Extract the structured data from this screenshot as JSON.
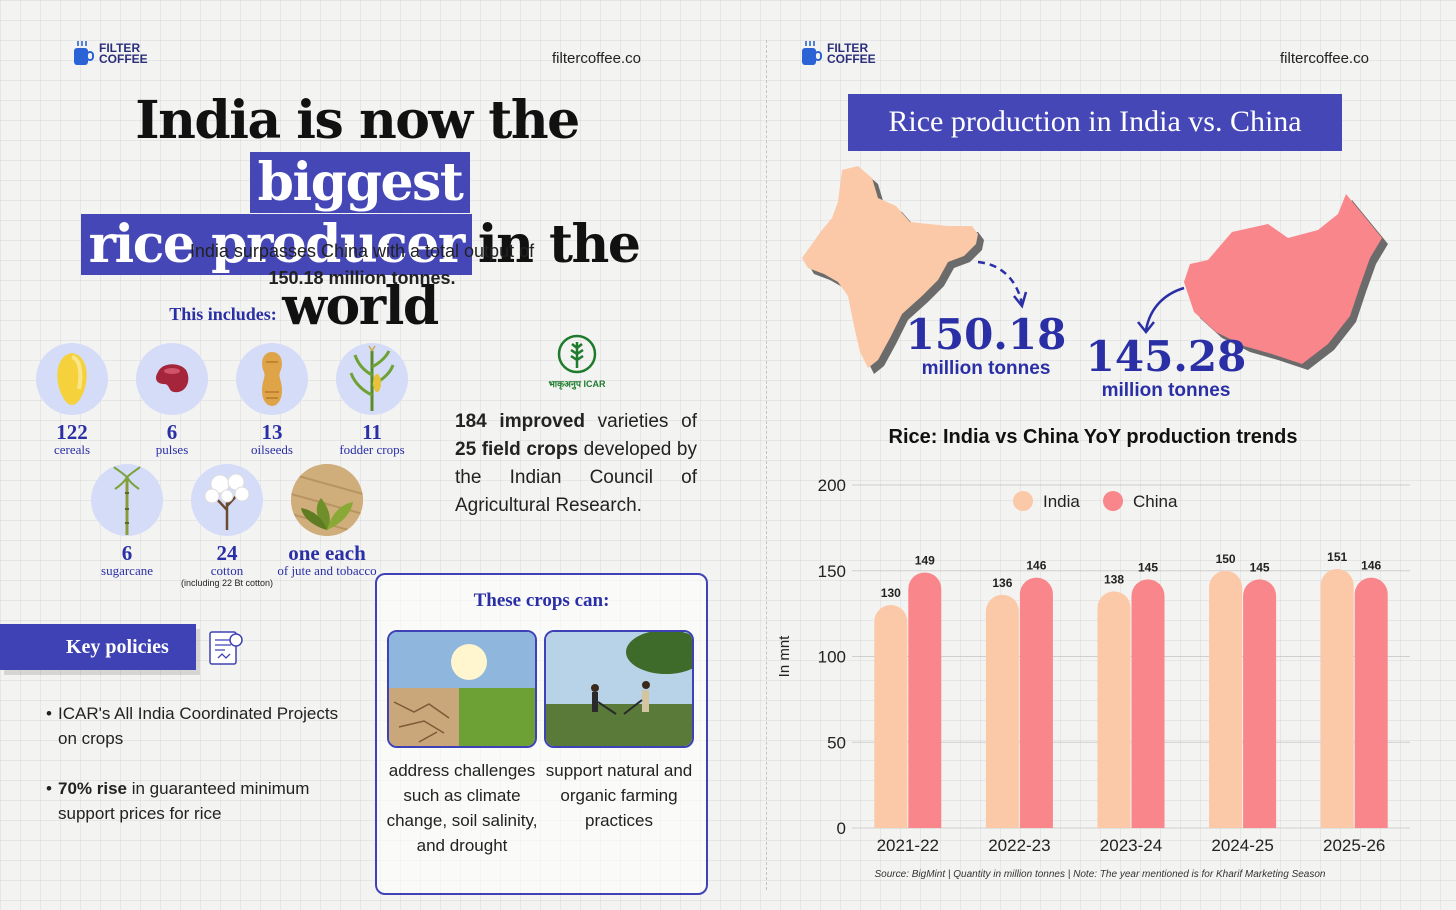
{
  "brand": {
    "line1": "FILTER",
    "line2": "COFFEE",
    "site": "filtercoffee.co"
  },
  "left": {
    "headline": {
      "part1": "India is now the",
      "hl1": "biggest",
      "hl2": "rice producer",
      "part2": "in the world"
    },
    "subtext_line1": "India surpasses China with a total output of",
    "subtext_bold": "150.18 million tonnes.",
    "includes_title": "This includes:",
    "crops": [
      {
        "num": "122",
        "label": "cereals",
        "icon": "corn-icon"
      },
      {
        "num": "6",
        "label": "pulses",
        "icon": "bean-icon"
      },
      {
        "num": "13",
        "label": "oilseeds",
        "icon": "peanut-icon"
      },
      {
        "num": "11",
        "label": "fodder crops",
        "icon": "maize-plant-icon"
      },
      {
        "num": "6",
        "label": "sugarcane",
        "icon": "sugarcane-icon"
      },
      {
        "num": "24",
        "label": "cotton",
        "sub": "(including 22 Bt cotton)",
        "icon": "cotton-icon"
      },
      {
        "num": "one each",
        "label": "of jute and tobacco",
        "icon": "jute-tobacco-icon"
      }
    ],
    "icar_logo_text": "भाकृअनुप ICAR",
    "icar_bold1": "184 improved",
    "icar_text1": " varieties of ",
    "icar_bold2": "25 field crops",
    "icar_text2": " developed by the Indian Council of Agricultural Research.",
    "key_policies_title": "Key policies",
    "policy1": "ICAR's All India Coordinated Projects on crops",
    "policy2_bold": "70% rise",
    "policy2_text": " in guaranteed minimum support prices for rice",
    "crops_can_title": "These crops can:",
    "crops_can": [
      {
        "caption": "address challenges such as climate change, soil salinity, and drought",
        "icon": "cracked-earth-photo"
      },
      {
        "caption": "support natural and organic farming practices",
        "icon": "farmers-plowing-photo"
      }
    ]
  },
  "right": {
    "title": "Rice production in India vs. China",
    "india_value": "150.18",
    "china_value": "145.28",
    "unit": "million tonnes",
    "colors": {
      "india": "#fbc9a8",
      "china": "#f9868a",
      "accent": "#4547b6"
    }
  },
  "chart_data": {
    "type": "bar",
    "title": "Rice: India vs China YoY production trends",
    "categories": [
      "2021-22",
      "2022-23",
      "2023-24",
      "2024-25",
      "2025-26"
    ],
    "series": [
      {
        "name": "India",
        "values": [
          130,
          136,
          138,
          150,
          151
        ],
        "color": "#fbc9a8"
      },
      {
        "name": "China",
        "values": [
          149,
          146,
          145,
          145,
          146
        ],
        "color": "#f9868a"
      }
    ],
    "ylabel": "In mnt",
    "xlabel": "",
    "ylim": [
      0,
      200
    ],
    "yticks": [
      0,
      50,
      100,
      150,
      200
    ],
    "grid": true,
    "legend": "top-center",
    "source": "Source: BigMint | Quantity in million tonnes | Note: The year mentioned is for Kharif Marketing Season"
  }
}
